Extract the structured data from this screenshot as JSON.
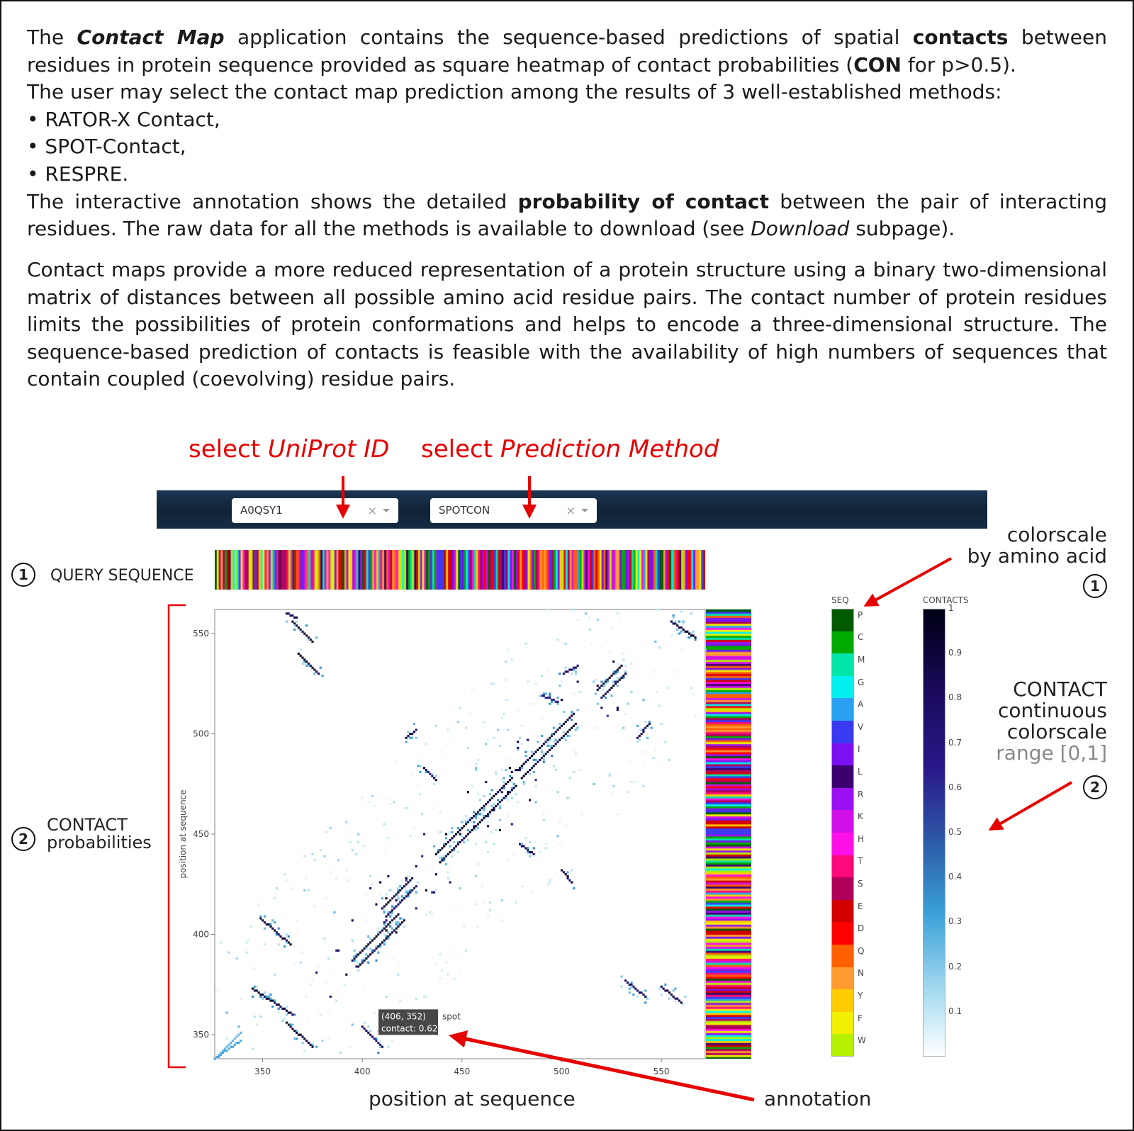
{
  "intro": {
    "p1_a": "The ",
    "p1_app": "Contact Map",
    "p1_b": " application contains the sequence-based predictions of spatial ",
    "p1_contacts": "contacts",
    "p1_c": " between residues in protein sequence provided as square heatmap of contact probabilities (",
    "p1_con": "CON",
    "p1_d": " for p>0.5).",
    "p2": "The user may select the contact map prediction among the results of 3 well-established methods:",
    "methods": [
      "• RATOR-X Contact,",
      "• SPOT-Contact,",
      "• RESPRE."
    ],
    "p3_a": "The interactive annotation shows the detailed ",
    "p3_bold": "probability of contact",
    "p3_b": " between the pair of interacting residues. The raw data for all the methods is available to download (see ",
    "p3_dl": "Download",
    "p3_c": " subpage)."
  },
  "about": "Contact maps provide a more reduced representation of a protein structure using a binary two-dimensional matrix of distances between all possible amino acid residue pairs. The contact number of protein residues limits the possibilities of protein conformations and helps to encode a three-dimensional structure. The sequence-based prediction of contacts is feasible with the availability of high numbers of sequences that contain coupled (coevolving) residue pairs.",
  "callouts": {
    "uniprot_a": "select ",
    "uniprot_b": "UniProt ID",
    "method_a": "select ",
    "method_b": "Prediction Method",
    "colorscale_l1": "colorscale",
    "colorscale_l2": "by amino acid",
    "contact_l1": "CONTACT",
    "contact_l2": "continuous",
    "contact_l3": "colorscale",
    "contact_l4": "range [0,1]",
    "query_seq": "QUERY SEQUENCE",
    "contact_prob_l1": "CONTACT",
    "contact_prob_l2": "probabilities",
    "x_axis_caption": "position at sequence",
    "annotation": "annotation",
    "num1": "1",
    "num2": "2"
  },
  "toolbar": {
    "uniprot_value": "A0QSY1",
    "method_value": "SPOTCON",
    "clear_glyph": "×"
  },
  "colors": {
    "callout_red": "#e60000",
    "toolbar_bg": "#132a40",
    "contact_dark": "#000014"
  },
  "icons": [
    "clear-icon",
    "caret-down-icon",
    "arrow-icon",
    "circled-number-icon"
  ],
  "chart_data": {
    "type": "heatmap",
    "xlabel": "",
    "ylabel": "position at sequence",
    "x_ticks": [
      "350",
      "400",
      "450",
      "500",
      "550"
    ],
    "y_ticks": [
      "550",
      "500",
      "450",
      "400",
      "350"
    ],
    "xlim": [
      326,
      572
    ],
    "ylim": [
      338,
      562
    ],
    "tooltip_l1": "(406, 352)",
    "tooltip_l2": "contact: 0.62",
    "tooltip_series": "spot",
    "tooltip_point": [
      406,
      352
    ],
    "seq_title": "SEQ",
    "seq_letters": [
      "P",
      "C",
      "M",
      "G",
      "A",
      "V",
      "I",
      "L",
      "R",
      "K",
      "H",
      "T",
      "S",
      "E",
      "D",
      "Q",
      "N",
      "Y",
      "F",
      "W"
    ],
    "seq_colors": [
      "#005a00",
      "#00aa00",
      "#00e6a8",
      "#00f0f0",
      "#2aa0f0",
      "#3a3af0",
      "#7b10f0",
      "#3c0070",
      "#9a10f0",
      "#d010e8",
      "#ff10e6",
      "#ff0a7a",
      "#b0005a",
      "#d20000",
      "#ff0000",
      "#ff6000",
      "#ff9a30",
      "#ffcc00",
      "#f0f000",
      "#b4f000"
    ],
    "contacts_title": "CONTACTS",
    "contacts_ticks": [
      "1",
      "0.9",
      "0.8",
      "0.7",
      "0.6",
      "0.5",
      "0.4",
      "0.3",
      "0.2",
      "0.1"
    ],
    "contacts_range": [
      0,
      1
    ]
  }
}
